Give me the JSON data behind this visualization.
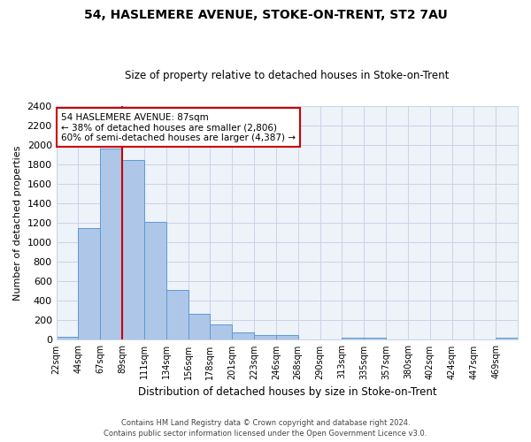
{
  "title": "54, HASLEMERE AVENUE, STOKE-ON-TRENT, ST2 7AU",
  "subtitle": "Size of property relative to detached houses in Stoke-on-Trent",
  "xlabel": "Distribution of detached houses by size in Stoke-on-Trent",
  "ylabel": "Number of detached properties",
  "footer_line1": "Contains HM Land Registry data © Crown copyright and database right 2024.",
  "footer_line2": "Contains public sector information licensed under the Open Government Licence v3.0.",
  "bin_labels": [
    "22sqm",
    "44sqm",
    "67sqm",
    "89sqm",
    "111sqm",
    "134sqm",
    "156sqm",
    "178sqm",
    "201sqm",
    "223sqm",
    "246sqm",
    "268sqm",
    "290sqm",
    "313sqm",
    "335sqm",
    "357sqm",
    "380sqm",
    "402sqm",
    "424sqm",
    "447sqm",
    "469sqm"
  ],
  "bar_values": [
    30,
    1150,
    1960,
    1840,
    1210,
    510,
    265,
    155,
    80,
    50,
    45,
    0,
    0,
    25,
    20,
    0,
    0,
    0,
    0,
    0,
    20
  ],
  "bar_color": "#aec6e8",
  "bar_edge_color": "#5b9bd5",
  "annotation_title": "54 HASLEMERE AVENUE: 87sqm",
  "annotation_line1": "← 38% of detached houses are smaller (2,806)",
  "annotation_line2": "60% of semi-detached houses are larger (4,387) →",
  "ylim": [
    0,
    2400
  ],
  "yticks": [
    0,
    200,
    400,
    600,
    800,
    1000,
    1200,
    1400,
    1600,
    1800,
    2000,
    2200,
    2400
  ],
  "bg_color": "#eef2f9",
  "grid_color": "#c8d4e8",
  "annotation_box_color": "#cc0000",
  "red_line_x": 3.0
}
